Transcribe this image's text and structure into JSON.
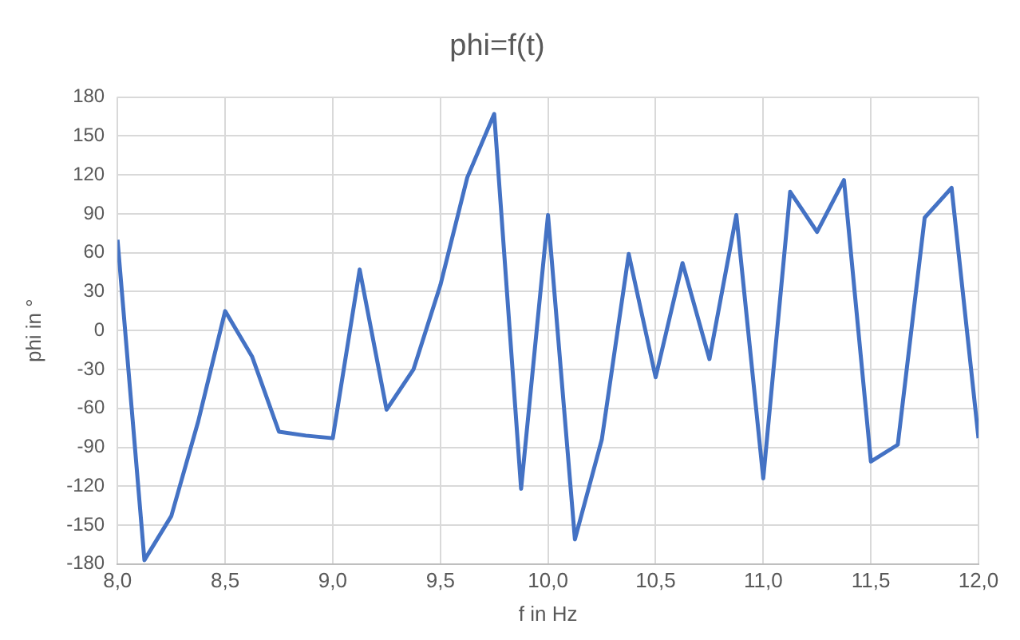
{
  "chart_data": {
    "type": "line",
    "title": "phi=f(t)",
    "xlabel": "f in Hz",
    "ylabel": "phi in °",
    "x": [
      8.0,
      8.125,
      8.25,
      8.375,
      8.5,
      8.625,
      8.75,
      8.875,
      9.0,
      9.125,
      9.25,
      9.375,
      9.5,
      9.625,
      9.75,
      9.875,
      10.0,
      10.125,
      10.25,
      10.375,
      10.5,
      10.625,
      10.75,
      10.875,
      11.0,
      11.125,
      11.25,
      11.375,
      11.5,
      11.625,
      11.75,
      11.875,
      12.0
    ],
    "series": [
      {
        "color": "#4472c4",
        "values": [
          70,
          -177,
          -143,
          -70,
          15,
          -20,
          -78,
          -81,
          -83,
          47,
          -61,
          -30,
          35,
          118,
          167,
          -122,
          89,
          -161,
          -84,
          59,
          -36,
          52,
          -22,
          89,
          -114,
          107,
          76,
          116,
          -101,
          -88,
          87,
          110,
          -83
        ]
      }
    ],
    "xlim": [
      8.0,
      12.0
    ],
    "xticks": [
      {
        "value": 8.0,
        "label": "8,0"
      },
      {
        "value": 8.5,
        "label": "8,5"
      },
      {
        "value": 9.0,
        "label": "9,0"
      },
      {
        "value": 9.5,
        "label": "9,5"
      },
      {
        "value": 10.0,
        "label": "10,0"
      },
      {
        "value": 10.5,
        "label": "10,5"
      },
      {
        "value": 11.0,
        "label": "11,0"
      },
      {
        "value": 11.5,
        "label": "11,5"
      },
      {
        "value": 12.0,
        "label": "12,0"
      }
    ],
    "ylim": [
      -180,
      180
    ],
    "yticks": [
      -180,
      -150,
      -120,
      -90,
      -60,
      -30,
      0,
      30,
      60,
      90,
      120,
      150,
      180
    ],
    "grid": true,
    "legend": false,
    "marker": "none",
    "line_style": "solid"
  }
}
